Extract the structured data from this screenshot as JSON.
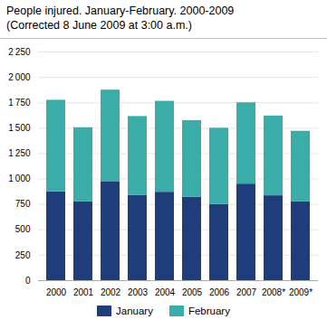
{
  "chart_data": {
    "type": "bar",
    "stacked": true,
    "title": "People injured. January-February. 2000-2009",
    "subtitle": "(Corrected 8 June 2009 at 3:00 a.m.)",
    "categories": [
      "2000",
      "2001",
      "2002",
      "2003",
      "2004",
      "2005",
      "2006",
      "2007",
      "2008*",
      "2009*"
    ],
    "series": [
      {
        "name": "January",
        "color": "#1f3d7a",
        "values": [
          875,
          775,
          975,
          840,
          870,
          820,
          750,
          950,
          835,
          775
        ]
      },
      {
        "name": "February",
        "color": "#3aada8",
        "values": [
          900,
          730,
          900,
          775,
          895,
          755,
          750,
          800,
          785,
          695
        ]
      }
    ],
    "ylim": [
      0,
      2250
    ],
    "yticks": [
      0,
      250,
      500,
      750,
      {
        "value": 1000,
        "label": "1 000"
      },
      {
        "value": 1250,
        "label": "1 250"
      },
      {
        "value": 1500,
        "label": "1 500"
      },
      {
        "value": 1750,
        "label": "1 750"
      },
      {
        "value": 2000,
        "label": "2 000"
      },
      {
        "value": 2250,
        "label": "2 250"
      }
    ],
    "grid": true,
    "legend": "bottom"
  }
}
